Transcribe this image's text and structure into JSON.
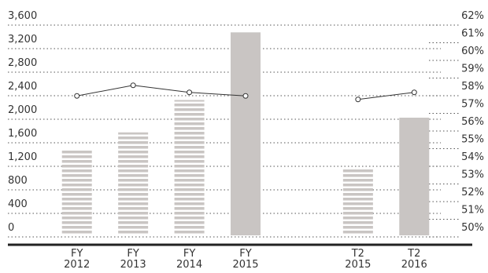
{
  "chart_data": {
    "type": "bar",
    "categories": [
      [
        "FY",
        "2012"
      ],
      [
        "FY",
        "2013"
      ],
      [
        "FY",
        "2014"
      ],
      [
        "FY",
        "2015"
      ],
      null,
      [
        "T2",
        "2015"
      ],
      [
        "T2",
        "2016"
      ]
    ],
    "series": [
      {
        "type": "bar",
        "color": "#c9c5c3",
        "styles": [
          "striped",
          "striped",
          "striped",
          "solid",
          null,
          "striped",
          "solid"
        ],
        "values": [
          1450,
          1750,
          2300,
          3450,
          null,
          1150,
          2000
        ]
      },
      {
        "type": "line",
        "axis": "y2",
        "color": "#333333",
        "values": [
          57.9,
          58.5,
          58.1,
          57.9,
          null,
          57.7,
          58.1
        ]
      }
    ],
    "ylim": [
      0,
      3600
    ],
    "yticks": [
      0,
      400,
      800,
      {
        "value": 1200,
        "label": "1,200"
      },
      {
        "value": 1600,
        "label": "1,600"
      },
      {
        "value": 2000,
        "label": "2,000"
      },
      {
        "value": 2400,
        "label": "2,400"
      },
      {
        "value": 2800,
        "label": "2,800"
      },
      {
        "value": 3200,
        "label": "3,200"
      },
      {
        "value": 3600,
        "label": "3,600"
      }
    ],
    "y2lim": [
      50,
      62
    ],
    "y2ticks": [
      {
        "value": 50,
        "label": "50%"
      },
      {
        "value": 51,
        "label": "51%"
      },
      {
        "value": 52,
        "label": "52%"
      },
      {
        "value": 53,
        "label": "53%"
      },
      {
        "value": 54,
        "label": "54%"
      },
      {
        "value": 55,
        "label": "55%"
      },
      {
        "value": 56,
        "label": "56%"
      },
      {
        "value": 57,
        "label": "57%"
      },
      {
        "value": 58,
        "label": "58%"
      },
      {
        "value": 59,
        "label": "59%"
      },
      {
        "value": 60,
        "label": "60%"
      },
      {
        "value": 61,
        "label": "61%"
      },
      {
        "value": 62,
        "label": "62%"
      }
    ],
    "grid": true
  }
}
